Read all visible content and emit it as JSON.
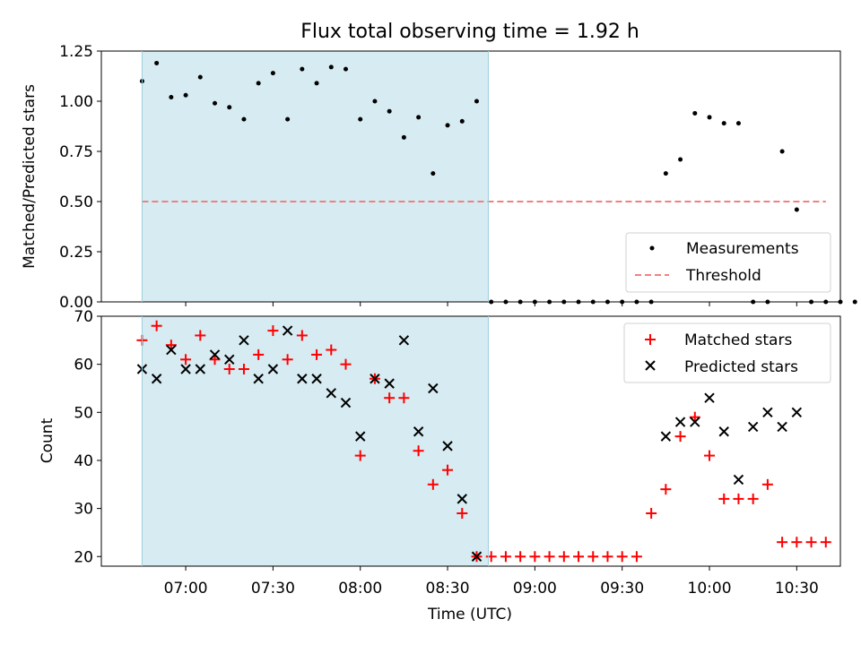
{
  "chart_data": [
    {
      "type": "scatter",
      "title": "Flux total observing time = 1.92 h",
      "xlabel": "",
      "ylabel": "Matched/Predicted stars",
      "ylim": [
        0,
        1.25
      ],
      "xlim": [
        "06:31",
        "10:45"
      ],
      "yticks": [
        "0.00",
        "0.25",
        "0.50",
        "0.75",
        "1.00",
        "1.25"
      ],
      "shaded_region": {
        "start": "06:45",
        "end": "08:44",
        "color": "#add8e6"
      },
      "legend_position": "lower-right",
      "series": [
        {
          "name": "Measurements",
          "color": "#000000",
          "marker": "dot",
          "x": [
            "06:45",
            "06:50",
            "06:55",
            "07:00",
            "07:05",
            "07:10",
            "07:15",
            "07:20",
            "07:25",
            "07:30",
            "07:35",
            "07:40",
            "07:45",
            "07:50",
            "07:55",
            "08:00",
            "08:05",
            "08:10",
            "08:15",
            "08:20",
            "08:25",
            "08:30",
            "08:35",
            "08:40",
            "08:45",
            "08:50",
            "08:55",
            "09:00",
            "09:05",
            "09:10",
            "09:15",
            "09:20",
            "09:25",
            "09:30",
            "09:35",
            "09:40",
            "09:45",
            "09:50",
            "09:55",
            "10:00",
            "10:05",
            "10:10",
            "10:15",
            "10:20",
            "10:25",
            "10:30",
            "10:35",
            "10:40",
            "10:45",
            "10:50"
          ],
          "y": [
            1.1,
            1.19,
            1.02,
            1.03,
            1.12,
            0.99,
            0.97,
            0.91,
            1.09,
            1.14,
            0.91,
            1.16,
            1.09,
            1.17,
            1.16,
            0.91,
            1.0,
            0.95,
            0.82,
            0.92,
            0.64,
            0.88,
            0.9,
            1.0,
            0,
            0,
            0,
            0,
            0,
            0,
            0,
            0,
            0,
            0,
            0,
            0,
            0.64,
            0.71,
            0.94,
            0.92,
            0.89,
            0.89,
            0,
            0,
            0.75,
            0.46,
            0,
            0,
            0,
            0
          ]
        },
        {
          "name": "Threshold",
          "color": "#f08080",
          "style": "dashed",
          "x": [
            "06:45",
            "10:40"
          ],
          "y": [
            0.5,
            0.5
          ]
        }
      ]
    },
    {
      "type": "scatter",
      "xlabel": "Time (UTC)",
      "ylabel": "Count",
      "ylim": [
        18,
        70
      ],
      "xlim": [
        "06:31",
        "10:45"
      ],
      "yticks": [
        "20",
        "30",
        "40",
        "50",
        "60",
        "70"
      ],
      "xticks": [
        "07:00",
        "07:30",
        "08:00",
        "08:30",
        "09:00",
        "09:30",
        "10:00",
        "10:30"
      ],
      "shaded_region": {
        "start": "06:45",
        "end": "08:44",
        "color": "#add8e6"
      },
      "legend_position": "upper-right",
      "series": [
        {
          "name": "Matched stars",
          "color": "#ff0000",
          "marker": "plus",
          "x": [
            "06:45",
            "06:50",
            "06:55",
            "07:00",
            "07:05",
            "07:10",
            "07:15",
            "07:20",
            "07:25",
            "07:30",
            "07:35",
            "07:40",
            "07:45",
            "07:50",
            "07:55",
            "08:00",
            "08:05",
            "08:10",
            "08:15",
            "08:20",
            "08:25",
            "08:30",
            "08:35",
            "08:40",
            "08:45",
            "08:50",
            "08:55",
            "09:00",
            "09:05",
            "09:10",
            "09:15",
            "09:20",
            "09:25",
            "09:30",
            "09:35",
            "09:40",
            "09:45",
            "09:50",
            "09:55",
            "10:00",
            "10:05",
            "10:10",
            "10:15",
            "10:20",
            "10:25",
            "10:30",
            "10:35",
            "10:40"
          ],
          "y": [
            65,
            68,
            64,
            61,
            66,
            61,
            59,
            59,
            62,
            67,
            61,
            66,
            62,
            63,
            60,
            41,
            57,
            53,
            53,
            42,
            35,
            38,
            29,
            20,
            20,
            20,
            20,
            20,
            20,
            20,
            20,
            20,
            20,
            20,
            20,
            29,
            34,
            45,
            49,
            41,
            32,
            32,
            32,
            35,
            23,
            23,
            23,
            23
          ]
        },
        {
          "name": "Predicted stars",
          "color": "#000000",
          "marker": "x",
          "x": [
            "06:45",
            "06:50",
            "06:55",
            "07:00",
            "07:05",
            "07:10",
            "07:15",
            "07:20",
            "07:25",
            "07:30",
            "07:35",
            "07:40",
            "07:45",
            "07:50",
            "07:55",
            "08:00",
            "08:05",
            "08:10",
            "08:15",
            "08:20",
            "08:25",
            "08:30",
            "08:35",
            "08:40",
            "09:45",
            "09:50",
            "09:55",
            "10:00",
            "10:05",
            "10:10",
            "10:15",
            "10:20",
            "10:25",
            "10:30"
          ],
          "y": [
            59,
            57,
            63,
            59,
            59,
            62,
            61,
            65,
            57,
            59,
            67,
            57,
            57,
            54,
            52,
            45,
            57,
            56,
            65,
            46,
            55,
            43,
            32,
            20,
            45,
            48,
            48,
            53,
            46,
            36,
            47,
            50,
            47,
            50
          ]
        }
      ]
    }
  ]
}
